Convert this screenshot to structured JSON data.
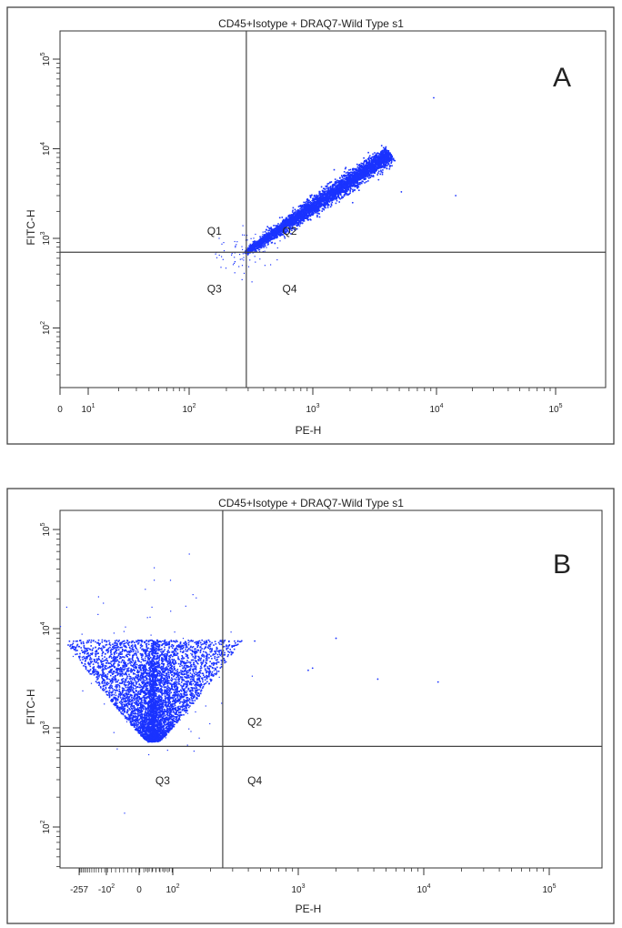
{
  "chart_data": [
    {
      "type": "scatter",
      "panel_label": "A",
      "title": "CD45+Isotype + DRAQ7-Wild Type s1",
      "xlabel": "PE-H",
      "ylabel": "FITC-H",
      "x_scale": "biexponential",
      "y_scale": "log",
      "x_tick_labels": [
        {
          "label": "0",
          "value": 0
        },
        {
          "label": "10^1",
          "value": 10
        },
        {
          "label": "10^2",
          "value": 100
        },
        {
          "label": "10^3",
          "value": 1000
        },
        {
          "label": "10^4",
          "value": 10000
        },
        {
          "label": "10^5",
          "value": 100000
        }
      ],
      "y_tick_labels": [
        {
          "label": "10^2",
          "value": 100
        },
        {
          "label": "10^3",
          "value": 1000
        },
        {
          "label": "10^4",
          "value": 10000
        },
        {
          "label": "10^5",
          "value": 100000
        }
      ],
      "gates": {
        "x": 290,
        "y": 700
      },
      "quadrant_labels": [
        {
          "label": "Q1",
          "x": 160,
          "y": 1100
        },
        {
          "label": "Q2",
          "x": 650,
          "y": 1100
        },
        {
          "label": "Q3",
          "x": 160,
          "y": 250
        },
        {
          "label": "Q4",
          "x": 650,
          "y": 250
        }
      ],
      "population": {
        "shape": "diagonal",
        "color": "#1a33ff",
        "main_axis": {
          "from": [
            280,
            700
          ],
          "to": [
            4200,
            9000
          ]
        },
        "outliers": [
          [
            9500,
            37000
          ],
          [
            5200,
            3300
          ],
          [
            14500,
            3000
          ],
          [
            3400,
            4500
          ],
          [
            2100,
            2500
          ]
        ]
      }
    },
    {
      "type": "scatter",
      "panel_label": "B",
      "title": "CD45+Isotype + DRAQ7-Wild Type s1",
      "xlabel": "PE-H",
      "ylabel": "FITC-H",
      "x_scale": "biexponential",
      "y_scale": "log",
      "x_tick_labels": [
        {
          "label": "-257",
          "value": -257
        },
        {
          "label": "-10^2",
          "value": -100
        },
        {
          "label": "0",
          "value": 0
        },
        {
          "label": "10^2",
          "value": 100
        },
        {
          "label": "10^3",
          "value": 1000
        },
        {
          "label": "10^4",
          "value": 10000
        },
        {
          "label": "10^5",
          "value": 100000
        }
      ],
      "y_tick_labels": [
        {
          "label": "10^2",
          "value": 100
        },
        {
          "label": "10^3",
          "value": 1000
        },
        {
          "label": "10^4",
          "value": 10000
        },
        {
          "label": "10^5",
          "value": 100000
        }
      ],
      "gates": {
        "x": 250,
        "y": 650
      },
      "quadrant_labels": [
        {
          "label": "Q2",
          "x": 450,
          "y": 1050
        },
        {
          "label": "Q3",
          "x": 70,
          "y": 270
        },
        {
          "label": "Q4",
          "x": 450,
          "y": 270
        }
      ],
      "population": {
        "shape": "triangle",
        "color": "#1a33ff",
        "center": [
          40,
          3500
        ],
        "outliers": [
          [
            2000,
            8000
          ],
          [
            1200,
            3800
          ],
          [
            4300,
            3100
          ],
          [
            13000,
            2900
          ],
          [
            1300,
            4000
          ],
          [
            450,
            7500
          ]
        ]
      }
    }
  ]
}
